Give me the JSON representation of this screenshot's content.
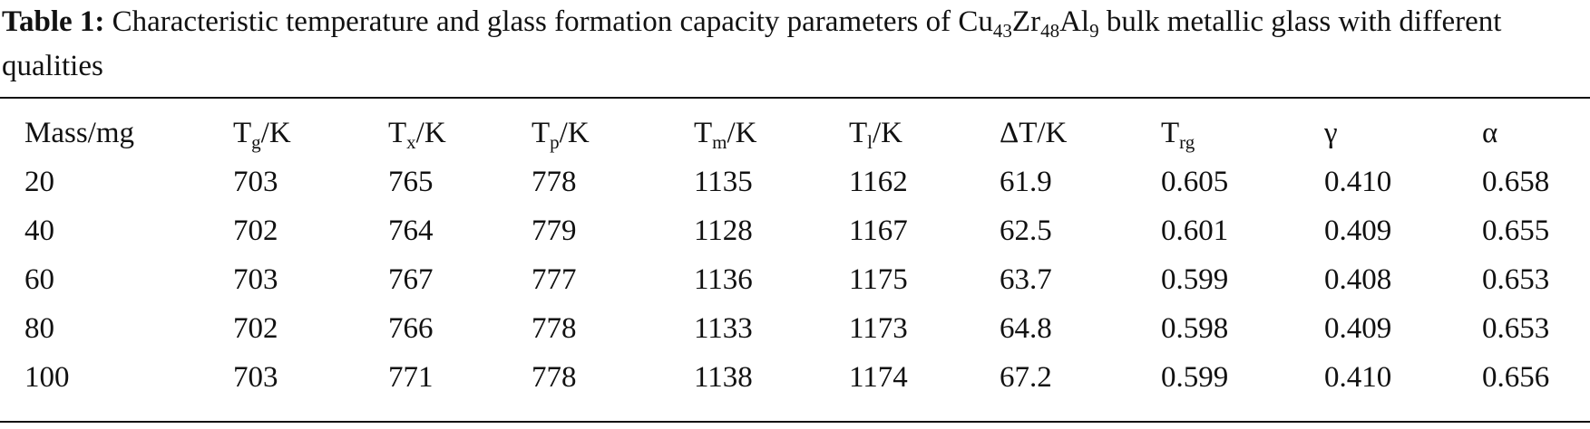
{
  "caption": {
    "label": "Table 1:",
    "text_pre": " Characteristic temperature and glass formation capacity parameters of Cu",
    "sub1": "43",
    "mid1": "Zr",
    "sub2": "48",
    "mid2": "Al",
    "sub3": "9",
    "text_post": " bulk metallic glass with different qualities"
  },
  "table": {
    "headers": [
      {
        "main": "Mass/mg",
        "sub": "",
        "tail": ""
      },
      {
        "main": "T",
        "sub": "g",
        "tail": "/K"
      },
      {
        "main": "T",
        "sub": "x",
        "tail": "/K"
      },
      {
        "main": "T",
        "sub": "p",
        "tail": "/K"
      },
      {
        "main": "T",
        "sub": "m",
        "tail": "/K"
      },
      {
        "main": "T",
        "sub": "l",
        "tail": "/K"
      },
      {
        "main": "ΔT/K",
        "sub": "",
        "tail": ""
      },
      {
        "main": "T",
        "sub": "rg",
        "tail": ""
      },
      {
        "main": "γ",
        "sub": "",
        "tail": ""
      },
      {
        "main": "α",
        "sub": "",
        "tail": ""
      }
    ],
    "rows": [
      [
        "20",
        "703",
        "765",
        "778",
        "1135",
        "1162",
        "61.9",
        "0.605",
        "0.410",
        "0.658"
      ],
      [
        "40",
        "702",
        "764",
        "779",
        "1128",
        "1167",
        "62.5",
        "0.601",
        "0.409",
        "0.655"
      ],
      [
        "60",
        "703",
        "767",
        "777",
        "1136",
        "1175",
        "63.7",
        "0.599",
        "0.408",
        "0.653"
      ],
      [
        "80",
        "702",
        "766",
        "778",
        "1133",
        "1173",
        "64.8",
        "0.598",
        "0.409",
        "0.653"
      ],
      [
        "100",
        "703",
        "771",
        "778",
        "1138",
        "1174",
        "67.2",
        "0.599",
        "0.410",
        "0.656"
      ]
    ]
  }
}
